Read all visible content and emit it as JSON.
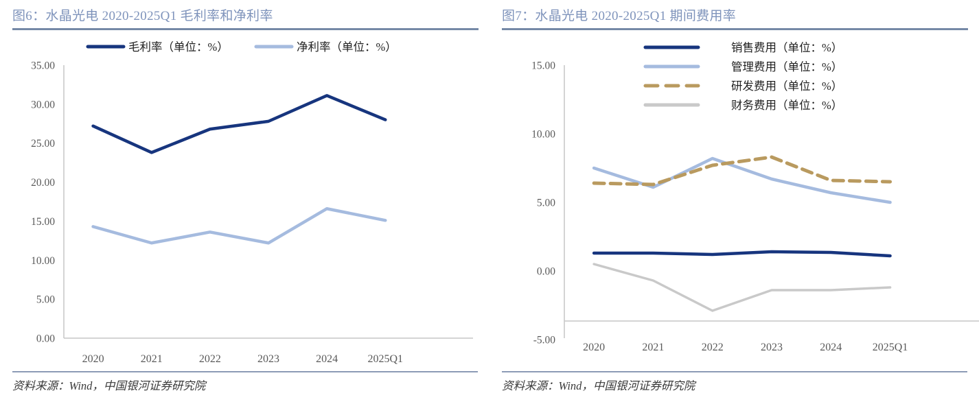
{
  "colors": {
    "title_text": "#7E93BB",
    "title_rule": "#7589A6",
    "footer_rule": "#8C9BB6",
    "axis_line": "#C6C6C6",
    "tick_text": "#595959",
    "legend_text": "#1F1F1F",
    "source_text": "#3A3A3A"
  },
  "chart_data": [
    {
      "type": "line",
      "title": "图6：水晶光电 2020-2025Q1 毛利率和净利率",
      "source": "资料来源：Wind，中国银河证券研究院",
      "categories": [
        "2020",
        "2021",
        "2022",
        "2023",
        "2024",
        "2025Q1"
      ],
      "series": [
        {
          "name": "毛利率（单位：%）",
          "color": "#17357E",
          "dash": "solid",
          "line_width": 4.5,
          "values": [
            27.2,
            23.8,
            26.8,
            27.8,
            31.1,
            28.0
          ]
        },
        {
          "name": "净利率（单位：%）",
          "color": "#A5BBDF",
          "dash": "solid",
          "line_width": 4.5,
          "values": [
            14.3,
            12.2,
            13.6,
            12.2,
            16.6,
            15.1
          ]
        }
      ],
      "ylim": [
        0,
        35
      ],
      "y_ticks": [
        "35.00",
        "30.00",
        "25.00",
        "20.00",
        "15.00",
        "10.00",
        "5.00",
        "0.00"
      ],
      "legend_position": "top",
      "grid": false
    },
    {
      "type": "line",
      "title": "图7：水晶光电 2020-2025Q1 期间费用率",
      "source": "资料来源：Wind，中国银河证券研究院",
      "categories": [
        "2020",
        "2021",
        "2022",
        "2023",
        "2024",
        "2025Q1"
      ],
      "series": [
        {
          "name": "销售费用（单位：%）",
          "color": "#17357E",
          "dash": "solid",
          "line_width": 4.5,
          "values": [
            1.3,
            1.3,
            1.2,
            1.4,
            1.35,
            1.1
          ]
        },
        {
          "name": "管理费用（单位：%）",
          "color": "#A5BBDF",
          "dash": "solid",
          "line_width": 4.5,
          "values": [
            7.5,
            6.1,
            8.2,
            6.7,
            5.7,
            5.0
          ]
        },
        {
          "name": "研发费用（单位：%）",
          "color": "#B99A5F",
          "dash": "dashed",
          "line_width": 5,
          "values": [
            6.4,
            6.3,
            7.7,
            8.3,
            6.6,
            6.5
          ]
        },
        {
          "name": "财务费用（单位：%）",
          "color": "#C9C9C9",
          "dash": "solid",
          "line_width": 3.5,
          "values": [
            0.5,
            -0.7,
            -2.9,
            -1.4,
            -1.4,
            -1.2
          ]
        }
      ],
      "ylim": [
        -5,
        15
      ],
      "y_ticks": [
        "15.00",
        "10.00",
        "5.00",
        "0.00",
        "-5.00"
      ],
      "legend_position": "top-right",
      "grid": false
    }
  ]
}
